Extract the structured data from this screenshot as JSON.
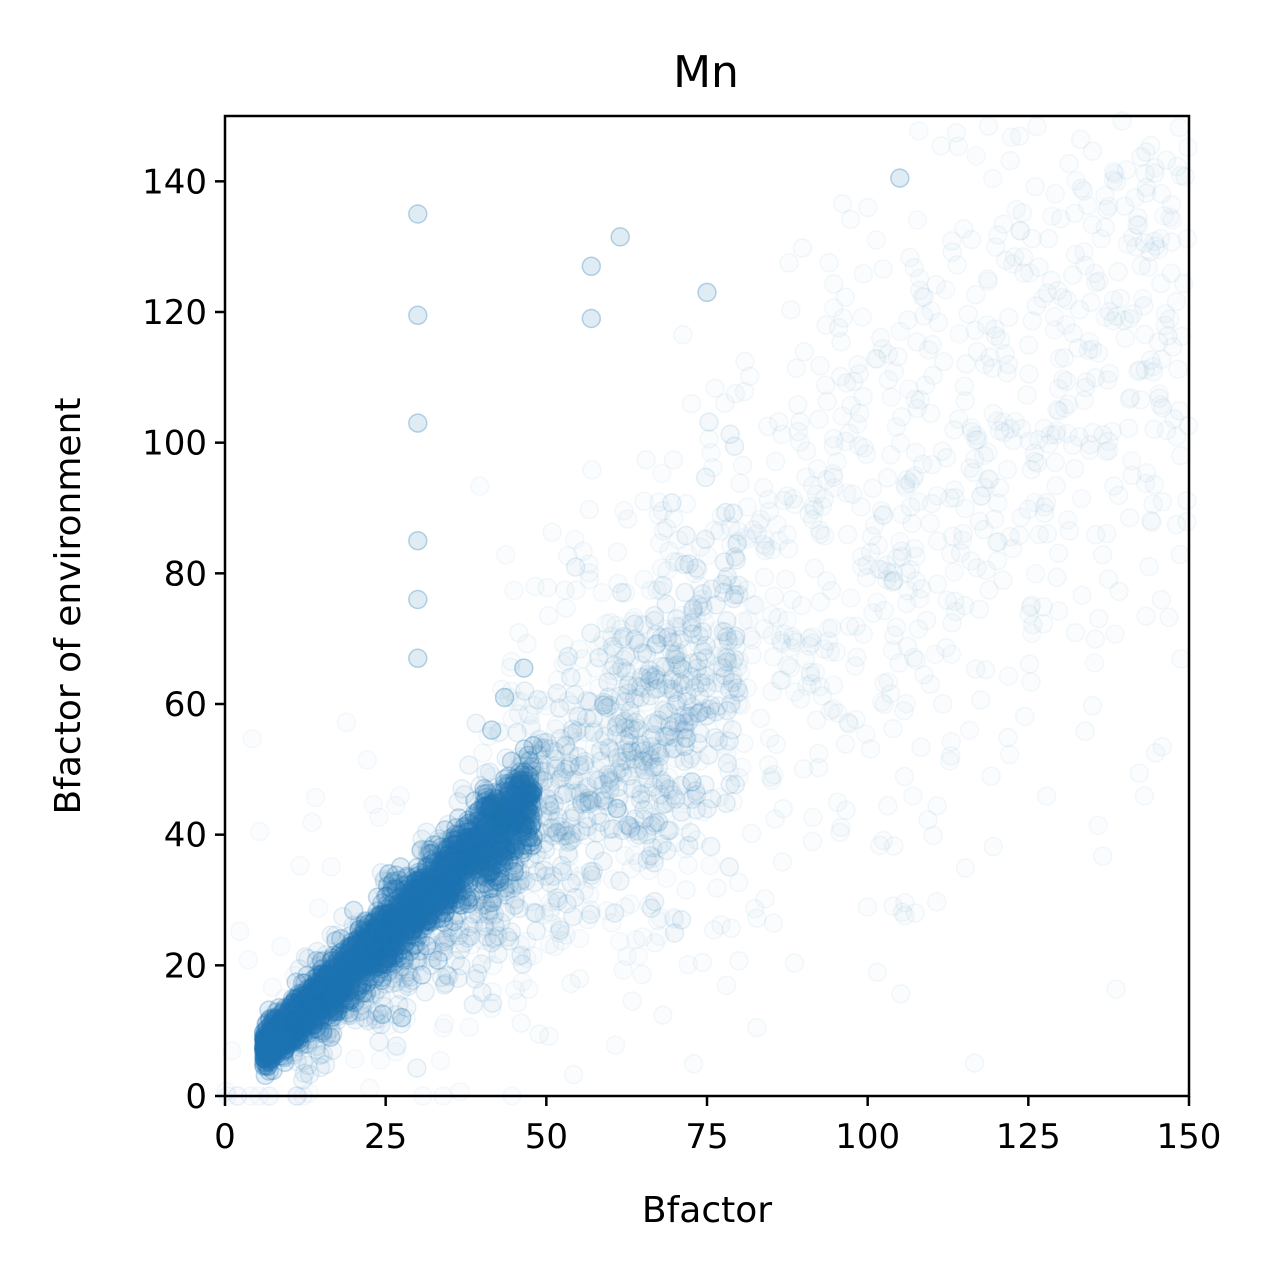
{
  "chart_data": {
    "type": "scatter",
    "title": "Mn",
    "xlabel": "Bfactor",
    "ylabel": "Bfactor of environment",
    "xlim": [
      0,
      150
    ],
    "ylim": [
      0,
      150
    ],
    "xticks": [
      "0",
      "25",
      "50",
      "75",
      "100",
      "125",
      "150"
    ],
    "yticks": [
      "0",
      "20",
      "40",
      "60",
      "80",
      "100",
      "120",
      "140"
    ],
    "grid": false,
    "marker_color": "#1f77b4",
    "marker_alpha": 0.02,
    "dense_trend": {
      "description_points": [
        [
          6,
          7
        ],
        [
          25,
          24
        ],
        [
          48,
          46
        ]
      ]
    },
    "notable_points": [
      {
        "x": 30,
        "y": 103
      },
      {
        "x": 46.5,
        "y": 65.5
      },
      {
        "x": 43.5,
        "y": 61
      },
      {
        "x": 41.5,
        "y": 56
      },
      {
        "x": 61,
        "y": 44
      },
      {
        "x": 25.5,
        "y": 34
      },
      {
        "x": 24.5,
        "y": 12.5
      },
      {
        "x": 27.5,
        "y": 12
      },
      {
        "x": 30,
        "y": 76
      },
      {
        "x": 30,
        "y": 67
      },
      {
        "x": 30,
        "y": 85
      },
      {
        "x": 30,
        "y": 119.5
      },
      {
        "x": 30,
        "y": 135
      },
      {
        "x": 57,
        "y": 127
      },
      {
        "x": 57,
        "y": 119
      },
      {
        "x": 75,
        "y": 123
      },
      {
        "x": 61.5,
        "y": 131.5
      },
      {
        "x": 105,
        "y": 140.5
      }
    ]
  }
}
